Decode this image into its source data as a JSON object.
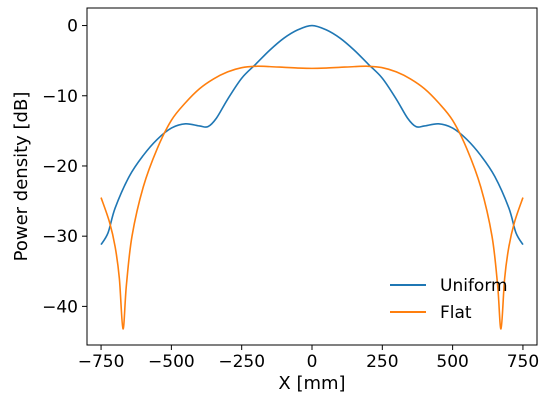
{
  "chart_data": {
    "type": "line",
    "title": "",
    "xlabel": "X [mm]",
    "ylabel": "Power density [dB]",
    "xlim": [
      -800,
      800
    ],
    "ylim": [
      -45.5,
      2.5
    ],
    "xticks": [
      -750,
      -500,
      -250,
      0,
      250,
      500,
      750
    ],
    "xtick_labels": [
      "−750",
      "−500",
      "−250",
      "0",
      "250",
      "500",
      "750"
    ],
    "yticks": [
      0,
      -10,
      -20,
      -30,
      -40
    ],
    "ytick_labels": [
      "0",
      "−10",
      "−20",
      "−30",
      "−40"
    ],
    "grid": false,
    "legend_position": "lower-right",
    "series": [
      {
        "name": "Uniform",
        "color": "#1f77b4",
        "points": [
          [
            -750,
            -31.2
          ],
          [
            -725,
            -29.5
          ],
          [
            -700,
            -26.0
          ],
          [
            -650,
            -21.5
          ],
          [
            -600,
            -18.5
          ],
          [
            -550,
            -16.2
          ],
          [
            -500,
            -14.6
          ],
          [
            -450,
            -14.0
          ],
          [
            -400,
            -14.3
          ],
          [
            -370,
            -14.4
          ],
          [
            -340,
            -13.2
          ],
          [
            -300,
            -10.5
          ],
          [
            -250,
            -7.5
          ],
          [
            -200,
            -5.5
          ],
          [
            -150,
            -3.5
          ],
          [
            -100,
            -1.8
          ],
          [
            -50,
            -0.6
          ],
          [
            0,
            0
          ],
          [
            50,
            -0.6
          ],
          [
            100,
            -1.8
          ],
          [
            150,
            -3.5
          ],
          [
            200,
            -5.5
          ],
          [
            250,
            -7.5
          ],
          [
            300,
            -10.5
          ],
          [
            340,
            -13.2
          ],
          [
            370,
            -14.4
          ],
          [
            400,
            -14.3
          ],
          [
            450,
            -14.0
          ],
          [
            500,
            -14.6
          ],
          [
            550,
            -16.2
          ],
          [
            600,
            -18.5
          ],
          [
            650,
            -21.5
          ],
          [
            700,
            -26.0
          ],
          [
            725,
            -29.5
          ],
          [
            750,
            -31.2
          ]
        ]
      },
      {
        "name": "Flat",
        "color": "#ff7f0e",
        "points": [
          [
            -750,
            -24.5
          ],
          [
            -720,
            -28.0
          ],
          [
            -700,
            -31.5
          ],
          [
            -685,
            -36.0
          ],
          [
            -672,
            -43.2
          ],
          [
            -660,
            -37.0
          ],
          [
            -640,
            -30.0
          ],
          [
            -600,
            -23.0
          ],
          [
            -550,
            -17.5
          ],
          [
            -500,
            -13.5
          ],
          [
            -450,
            -11.0
          ],
          [
            -400,
            -9.0
          ],
          [
            -350,
            -7.6
          ],
          [
            -300,
            -6.6
          ],
          [
            -250,
            -6.0
          ],
          [
            -200,
            -5.8
          ],
          [
            -150,
            -5.85
          ],
          [
            -100,
            -5.95
          ],
          [
            -50,
            -6.05
          ],
          [
            0,
            -6.1
          ],
          [
            50,
            -6.05
          ],
          [
            100,
            -5.95
          ],
          [
            150,
            -5.85
          ],
          [
            200,
            -5.8
          ],
          [
            250,
            -6.0
          ],
          [
            300,
            -6.6
          ],
          [
            350,
            -7.6
          ],
          [
            400,
            -9.0
          ],
          [
            450,
            -11.0
          ],
          [
            500,
            -13.5
          ],
          [
            550,
            -17.5
          ],
          [
            600,
            -23.0
          ],
          [
            640,
            -30.0
          ],
          [
            660,
            -37.0
          ],
          [
            672,
            -43.2
          ],
          [
            685,
            -36.0
          ],
          [
            700,
            -31.5
          ],
          [
            720,
            -28.0
          ],
          [
            750,
            -24.5
          ]
        ]
      }
    ]
  }
}
